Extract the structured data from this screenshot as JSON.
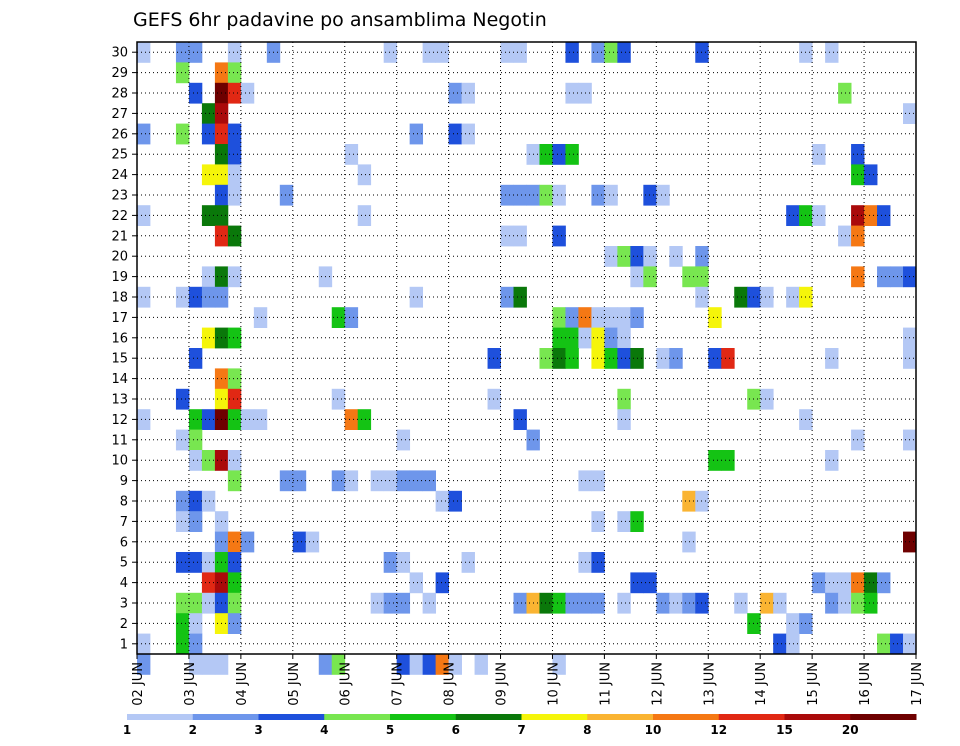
{
  "chart_data": {
    "type": "heatmap",
    "title": "GEFS 6hr padavine po ansamblima Negotin",
    "x_tick_labels": [
      "02 JUN",
      "03 JUN",
      "04 JUN",
      "05 JUN",
      "06 JUN",
      "07 JUN",
      "08 JUN",
      "09 JUN",
      "10 JUN",
      "11 JUN",
      "12 JUN",
      "13 JUN",
      "14 JUN",
      "15 JUN",
      "16 JUN",
      "17 JUN"
    ],
    "y_tick_labels": [
      "1",
      "2",
      "3",
      "4",
      "5",
      "6",
      "7",
      "8",
      "9",
      "10",
      "11",
      "12",
      "13",
      "14",
      "15",
      "16",
      "17",
      "18",
      "19",
      "20",
      "21",
      "22",
      "23",
      "24",
      "25",
      "26",
      "27",
      "28",
      "29",
      "30"
    ],
    "xlim": [
      0,
      60
    ],
    "ylim": [
      0.5,
      30.5
    ],
    "x_unit": "6-hour steps from 02 JUN 00Z",
    "y_unit": "ensemble member",
    "grid": true,
    "colorbar": {
      "position": "bottom",
      "labels": [
        "1",
        "2",
        "3",
        "4",
        "5",
        "6",
        "7",
        "8",
        "10",
        "12",
        "15",
        "20"
      ],
      "colors": [
        "#b4c8f5",
        "#6e96eb",
        "#1e50dc",
        "#78e650",
        "#14c314",
        "#0a780a",
        "#f5f50a",
        "#fab432",
        "#f57814",
        "#e12814",
        "#aa0a0a",
        "#6e0000"
      ]
    },
    "cells": [
      [
        0,
        30,
        1
      ],
      [
        3,
        30,
        2
      ],
      [
        4,
        30,
        2
      ],
      [
        7,
        30,
        1
      ],
      [
        10,
        30,
        2
      ],
      [
        19,
        30,
        1
      ],
      [
        22,
        30,
        1
      ],
      [
        23,
        30,
        1
      ],
      [
        28,
        30,
        1
      ],
      [
        29,
        30,
        1
      ],
      [
        33,
        30,
        3
      ],
      [
        35,
        30,
        2
      ],
      [
        36,
        30,
        4
      ],
      [
        37,
        30,
        3
      ],
      [
        43,
        30,
        3
      ],
      [
        51,
        30,
        1
      ],
      [
        53,
        30,
        1
      ],
      [
        3,
        29,
        4
      ],
      [
        6,
        29,
        10
      ],
      [
        7,
        29,
        4
      ],
      [
        4,
        28,
        3
      ],
      [
        6,
        28,
        20
      ],
      [
        7,
        28,
        12
      ],
      [
        8,
        28,
        1
      ],
      [
        24,
        28,
        2
      ],
      [
        25,
        28,
        1
      ],
      [
        33,
        28,
        1
      ],
      [
        34,
        28,
        1
      ],
      [
        54,
        28,
        4
      ],
      [
        5,
        27,
        6
      ],
      [
        6,
        27,
        15
      ],
      [
        59,
        27,
        1
      ],
      [
        0,
        26,
        2
      ],
      [
        3,
        26,
        4
      ],
      [
        5,
        26,
        3
      ],
      [
        6,
        26,
        12
      ],
      [
        7,
        26,
        3
      ],
      [
        21,
        26,
        2
      ],
      [
        24,
        26,
        3
      ],
      [
        25,
        26,
        1
      ],
      [
        6,
        25,
        6
      ],
      [
        7,
        25,
        3
      ],
      [
        16,
        25,
        1
      ],
      [
        30,
        25,
        1
      ],
      [
        31,
        25,
        5
      ],
      [
        32,
        25,
        3
      ],
      [
        33,
        25,
        5
      ],
      [
        52,
        25,
        1
      ],
      [
        55,
        25,
        3
      ],
      [
        5,
        24,
        7
      ],
      [
        6,
        24,
        7
      ],
      [
        7,
        24,
        1
      ],
      [
        17,
        24,
        1
      ],
      [
        55,
        24,
        5
      ],
      [
        56,
        24,
        3
      ],
      [
        6,
        23,
        3
      ],
      [
        7,
        23,
        1
      ],
      [
        11,
        23,
        2
      ],
      [
        28,
        23,
        2
      ],
      [
        29,
        23,
        2
      ],
      [
        30,
        23,
        2
      ],
      [
        31,
        23,
        4
      ],
      [
        32,
        23,
        1
      ],
      [
        35,
        23,
        2
      ],
      [
        36,
        23,
        1
      ],
      [
        39,
        23,
        3
      ],
      [
        40,
        23,
        1
      ],
      [
        0,
        22,
        1
      ],
      [
        5,
        22,
        6
      ],
      [
        6,
        22,
        6
      ],
      [
        17,
        22,
        1
      ],
      [
        50,
        22,
        3
      ],
      [
        51,
        22,
        5
      ],
      [
        52,
        22,
        1
      ],
      [
        55,
        22,
        15
      ],
      [
        56,
        22,
        10
      ],
      [
        57,
        22,
        3
      ],
      [
        6,
        21,
        12
      ],
      [
        7,
        21,
        6
      ],
      [
        28,
        21,
        1
      ],
      [
        29,
        21,
        1
      ],
      [
        32,
        21,
        3
      ],
      [
        54,
        21,
        1
      ],
      [
        55,
        21,
        10
      ],
      [
        36,
        20,
        1
      ],
      [
        37,
        20,
        4
      ],
      [
        38,
        20,
        3
      ],
      [
        39,
        20,
        1
      ],
      [
        41,
        20,
        1
      ],
      [
        43,
        20,
        2
      ],
      [
        5,
        19,
        1
      ],
      [
        6,
        19,
        6
      ],
      [
        7,
        19,
        1
      ],
      [
        14,
        19,
        1
      ],
      [
        38,
        19,
        1
      ],
      [
        39,
        19,
        4
      ],
      [
        42,
        19,
        4
      ],
      [
        43,
        19,
        4
      ],
      [
        55,
        19,
        10
      ],
      [
        57,
        19,
        2
      ],
      [
        58,
        19,
        2
      ],
      [
        59,
        19,
        3
      ],
      [
        0,
        18,
        1
      ],
      [
        3,
        18,
        1
      ],
      [
        4,
        18,
        3
      ],
      [
        5,
        18,
        2
      ],
      [
        6,
        18,
        2
      ],
      [
        21,
        18,
        1
      ],
      [
        28,
        18,
        2
      ],
      [
        29,
        18,
        6
      ],
      [
        43,
        18,
        1
      ],
      [
        46,
        18,
        6
      ],
      [
        47,
        18,
        3
      ],
      [
        48,
        18,
        1
      ],
      [
        50,
        18,
        1
      ],
      [
        51,
        18,
        7
      ],
      [
        9,
        17,
        1
      ],
      [
        15,
        17,
        5
      ],
      [
        16,
        17,
        2
      ],
      [
        32,
        17,
        4
      ],
      [
        33,
        17,
        2
      ],
      [
        34,
        17,
        10
      ],
      [
        35,
        17,
        1
      ],
      [
        36,
        17,
        1
      ],
      [
        37,
        17,
        1
      ],
      [
        38,
        17,
        2
      ],
      [
        44,
        17,
        7
      ],
      [
        5,
        16,
        7
      ],
      [
        6,
        16,
        6
      ],
      [
        7,
        16,
        5
      ],
      [
        32,
        16,
        5
      ],
      [
        33,
        16,
        5
      ],
      [
        34,
        16,
        1
      ],
      [
        35,
        16,
        7
      ],
      [
        36,
        16,
        2
      ],
      [
        37,
        16,
        1
      ],
      [
        59,
        16,
        1
      ],
      [
        4,
        15,
        3
      ],
      [
        27,
        15,
        3
      ],
      [
        31,
        15,
        4
      ],
      [
        32,
        15,
        6
      ],
      [
        33,
        15,
        5
      ],
      [
        35,
        15,
        7
      ],
      [
        36,
        15,
        5
      ],
      [
        37,
        15,
        3
      ],
      [
        38,
        15,
        6
      ],
      [
        40,
        15,
        1
      ],
      [
        41,
        15,
        2
      ],
      [
        44,
        15,
        3
      ],
      [
        45,
        15,
        12
      ],
      [
        53,
        15,
        1
      ],
      [
        59,
        15,
        1
      ],
      [
        6,
        14,
        10
      ],
      [
        7,
        14,
        4
      ],
      [
        3,
        13,
        3
      ],
      [
        6,
        13,
        7
      ],
      [
        7,
        13,
        12
      ],
      [
        15,
        13,
        1
      ],
      [
        27,
        13,
        1
      ],
      [
        37,
        13,
        4
      ],
      [
        47,
        13,
        4
      ],
      [
        48,
        13,
        1
      ],
      [
        0,
        12,
        1
      ],
      [
        4,
        12,
        5
      ],
      [
        5,
        12,
        3
      ],
      [
        6,
        12,
        20
      ],
      [
        7,
        12,
        5
      ],
      [
        8,
        12,
        1
      ],
      [
        9,
        12,
        1
      ],
      [
        16,
        12,
        10
      ],
      [
        17,
        12,
        5
      ],
      [
        29,
        12,
        3
      ],
      [
        37,
        12,
        1
      ],
      [
        51,
        12,
        1
      ],
      [
        3,
        11,
        1
      ],
      [
        4,
        11,
        4
      ],
      [
        20,
        11,
        1
      ],
      [
        30,
        11,
        2
      ],
      [
        55,
        11,
        1
      ],
      [
        59,
        11,
        1
      ],
      [
        4,
        10,
        1
      ],
      [
        5,
        10,
        4
      ],
      [
        6,
        10,
        15
      ],
      [
        7,
        10,
        1
      ],
      [
        44,
        10,
        5
      ],
      [
        45,
        10,
        5
      ],
      [
        53,
        10,
        1
      ],
      [
        7,
        9,
        4
      ],
      [
        11,
        9,
        2
      ],
      [
        12,
        9,
        2
      ],
      [
        15,
        9,
        2
      ],
      [
        16,
        9,
        1
      ],
      [
        18,
        9,
        1
      ],
      [
        19,
        9,
        1
      ],
      [
        20,
        9,
        2
      ],
      [
        21,
        9,
        2
      ],
      [
        22,
        9,
        2
      ],
      [
        34,
        9,
        1
      ],
      [
        35,
        9,
        1
      ],
      [
        3,
        8,
        2
      ],
      [
        4,
        8,
        3
      ],
      [
        5,
        8,
        1
      ],
      [
        23,
        8,
        1
      ],
      [
        24,
        8,
        3
      ],
      [
        42,
        8,
        8
      ],
      [
        43,
        8,
        1
      ],
      [
        3,
        7,
        1
      ],
      [
        4,
        7,
        2
      ],
      [
        6,
        7,
        1
      ],
      [
        35,
        7,
        1
      ],
      [
        37,
        7,
        1
      ],
      [
        38,
        7,
        5
      ],
      [
        6,
        6,
        2
      ],
      [
        7,
        6,
        10
      ],
      [
        8,
        6,
        2
      ],
      [
        12,
        6,
        3
      ],
      [
        13,
        6,
        1
      ],
      [
        42,
        6,
        1
      ],
      [
        59,
        6,
        20
      ],
      [
        3,
        5,
        3
      ],
      [
        4,
        5,
        3
      ],
      [
        5,
        5,
        1
      ],
      [
        6,
        5,
        5
      ],
      [
        7,
        5,
        3
      ],
      [
        19,
        5,
        2
      ],
      [
        20,
        5,
        1
      ],
      [
        25,
        5,
        1
      ],
      [
        34,
        5,
        1
      ],
      [
        35,
        5,
        3
      ],
      [
        5,
        4,
        12
      ],
      [
        6,
        4,
        15
      ],
      [
        7,
        4,
        5
      ],
      [
        21,
        4,
        1
      ],
      [
        23,
        4,
        3
      ],
      [
        38,
        4,
        3
      ],
      [
        39,
        4,
        3
      ],
      [
        52,
        4,
        2
      ],
      [
        53,
        4,
        1
      ],
      [
        54,
        4,
        1
      ],
      [
        55,
        4,
        10
      ],
      [
        56,
        4,
        6
      ],
      [
        57,
        4,
        2
      ],
      [
        3,
        3,
        4
      ],
      [
        4,
        3,
        4
      ],
      [
        5,
        3,
        1
      ],
      [
        6,
        3,
        3
      ],
      [
        7,
        3,
        4
      ],
      [
        18,
        3,
        1
      ],
      [
        19,
        3,
        2
      ],
      [
        20,
        3,
        2
      ],
      [
        22,
        3,
        1
      ],
      [
        29,
        3,
        2
      ],
      [
        30,
        3,
        8
      ],
      [
        31,
        3,
        6
      ],
      [
        32,
        3,
        5
      ],
      [
        33,
        3,
        2
      ],
      [
        34,
        3,
        2
      ],
      [
        35,
        3,
        2
      ],
      [
        37,
        3,
        1
      ],
      [
        40,
        3,
        2
      ],
      [
        41,
        3,
        1
      ],
      [
        42,
        3,
        2
      ],
      [
        43,
        3,
        3
      ],
      [
        46,
        3,
        1
      ],
      [
        48,
        3,
        8
      ],
      [
        49,
        3,
        1
      ],
      [
        53,
        3,
        2
      ],
      [
        54,
        3,
        1
      ],
      [
        55,
        3,
        4
      ],
      [
        56,
        3,
        5
      ],
      [
        3,
        2,
        5
      ],
      [
        4,
        2,
        1
      ],
      [
        6,
        2,
        7
      ],
      [
        7,
        2,
        2
      ],
      [
        47,
        2,
        5
      ],
      [
        50,
        2,
        1
      ],
      [
        51,
        2,
        2
      ],
      [
        0,
        1,
        1
      ],
      [
        3,
        1,
        5
      ],
      [
        4,
        1,
        2
      ],
      [
        49,
        1,
        3
      ],
      [
        50,
        1,
        1
      ],
      [
        57,
        1,
        4
      ],
      [
        58,
        1,
        3
      ],
      [
        59,
        1,
        1
      ],
      [
        0,
        0,
        2
      ],
      [
        4,
        0,
        1
      ],
      [
        5,
        0,
        1
      ],
      [
        6,
        0,
        1
      ],
      [
        14,
        0,
        2
      ],
      [
        15,
        0,
        4
      ],
      [
        20,
        0,
        3
      ],
      [
        21,
        0,
        1
      ],
      [
        22,
        0,
        3
      ],
      [
        23,
        0,
        10
      ],
      [
        24,
        0,
        1
      ],
      [
        26,
        0,
        1
      ],
      [
        32,
        0,
        1
      ]
    ]
  }
}
